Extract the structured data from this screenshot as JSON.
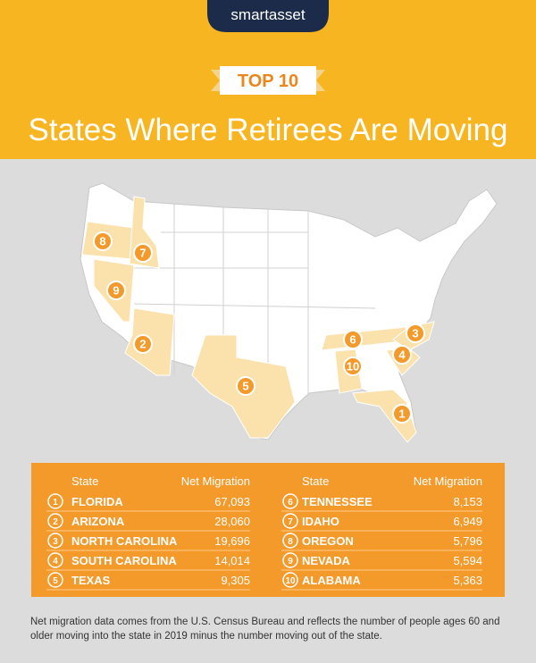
{
  "header": {
    "brand": "smartasset",
    "badge": "TOP 10",
    "title": "States Where Retirees Are Moving"
  },
  "table": {
    "columns": [
      "State",
      "Net Migration"
    ],
    "rows": [
      {
        "rank": 1,
        "state": "FLORIDA",
        "net_migration": "67,093"
      },
      {
        "rank": 2,
        "state": "ARIZONA",
        "net_migration": "28,060"
      },
      {
        "rank": 3,
        "state": "NORTH CAROLINA",
        "net_migration": "19,696"
      },
      {
        "rank": 4,
        "state": "SOUTH CAROLINA",
        "net_migration": "14,014"
      },
      {
        "rank": 5,
        "state": "TEXAS",
        "net_migration": "9,305"
      },
      {
        "rank": 6,
        "state": "TENNESSEE",
        "net_migration": "8,153"
      },
      {
        "rank": 7,
        "state": "IDAHO",
        "net_migration": "6,949"
      },
      {
        "rank": 8,
        "state": "OREGON",
        "net_migration": "5,796"
      },
      {
        "rank": 9,
        "state": "NEVADA",
        "net_migration": "5,594"
      },
      {
        "rank": 10,
        "state": "ALABAMA",
        "net_migration": "5,363"
      }
    ]
  },
  "footnote": "Net migration data comes from the U.S. Census Bureau and reflects the number of people ages 60 and older moving into the state in 2019 minus the number moving out of the state."
}
